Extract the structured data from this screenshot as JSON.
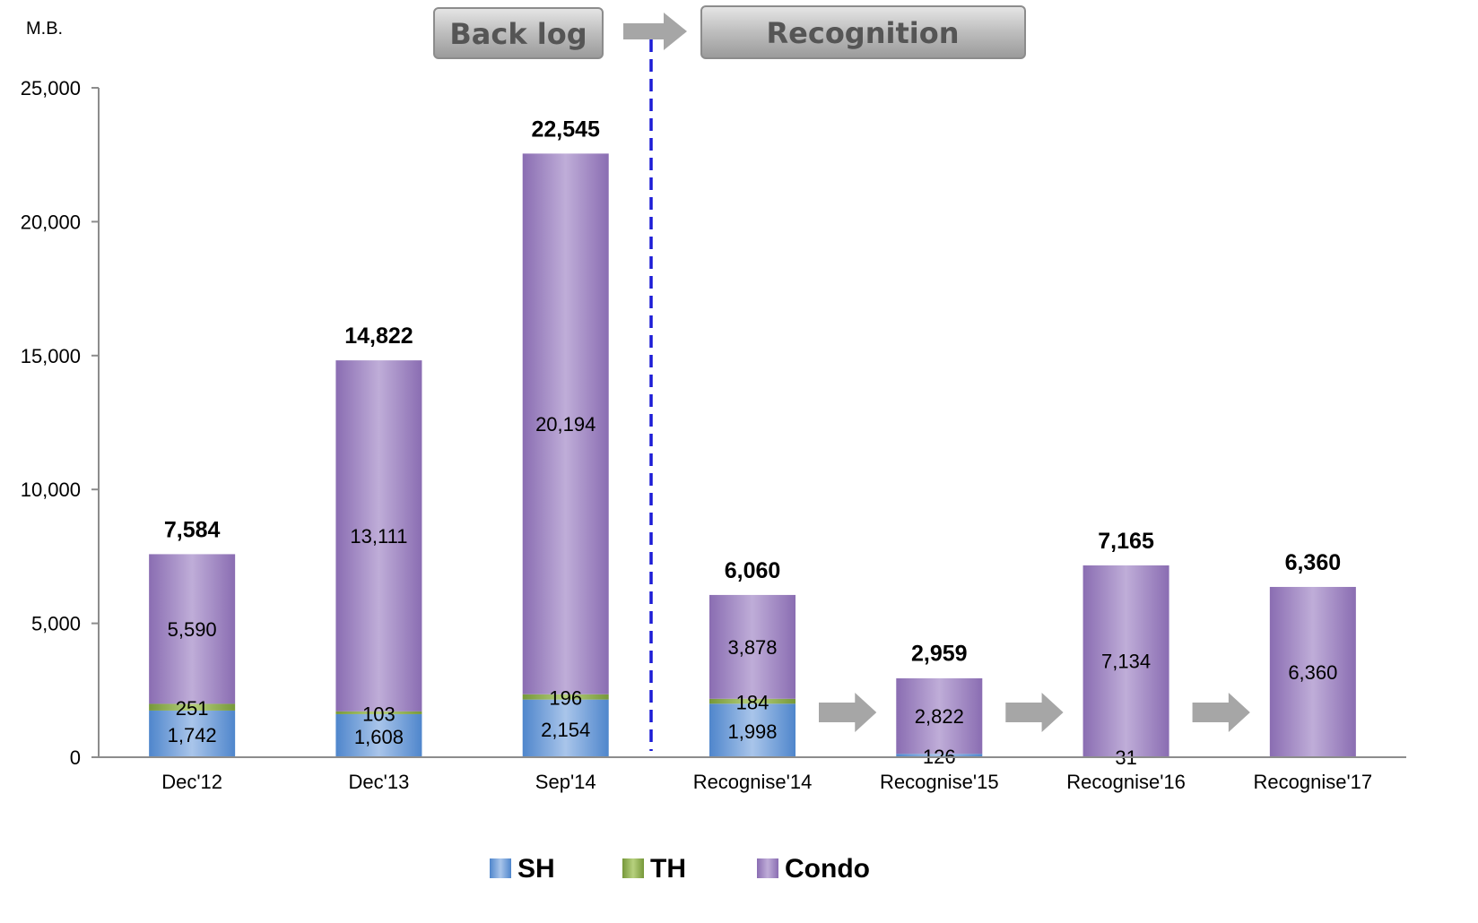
{
  "chart_data": {
    "type": "bar",
    "stacked": true,
    "unit_label": "M.B.",
    "categories": [
      "Dec'12",
      "Dec'13",
      "Sep'14",
      "Recognise'14",
      "Recognise'15",
      "Recognise'16",
      "Recognise'17"
    ],
    "series": [
      {
        "name": "SH",
        "color": "#6f9fd8",
        "values": [
          1742,
          1608,
          2154,
          1998,
          126,
          31,
          0
        ]
      },
      {
        "name": "TH",
        "color": "#8fb04e",
        "values": [
          251,
          103,
          196,
          184,
          0,
          0,
          0
        ]
      },
      {
        "name": "Condo",
        "color": "#9b82bd",
        "values": [
          5590,
          13111,
          20194,
          3878,
          2822,
          7134,
          6360
        ]
      }
    ],
    "segment_labels": [
      [
        "1,742",
        "251",
        "5,590"
      ],
      [
        "1,608",
        "103",
        "13,111"
      ],
      [
        "2,154",
        "196",
        "20,194"
      ],
      [
        "1,998",
        "184",
        "3,878"
      ],
      [
        "126",
        "",
        "2,822"
      ],
      [
        "31",
        "",
        "7,134"
      ],
      [
        "",
        "",
        "6,360"
      ]
    ],
    "totals": [
      7584,
      14822,
      22545,
      6060,
      2959,
      7165,
      6360
    ],
    "total_labels": [
      "7,584",
      "14,822",
      "22,545",
      "6,060",
      "2,959",
      "7,165",
      "6,360"
    ],
    "ylim": [
      0,
      25000
    ],
    "y_ticks": [
      0,
      5000,
      10000,
      15000,
      20000,
      25000
    ],
    "y_tick_labels": [
      "0",
      "5,000",
      "10,000",
      "15,000",
      "20,000",
      "25,000"
    ],
    "grid": false,
    "legend_position": "bottom-center",
    "annotations": {
      "backlog_label": "Back log",
      "recognition_label": "Recognition",
      "divider_color": "#1c1cd6"
    }
  }
}
